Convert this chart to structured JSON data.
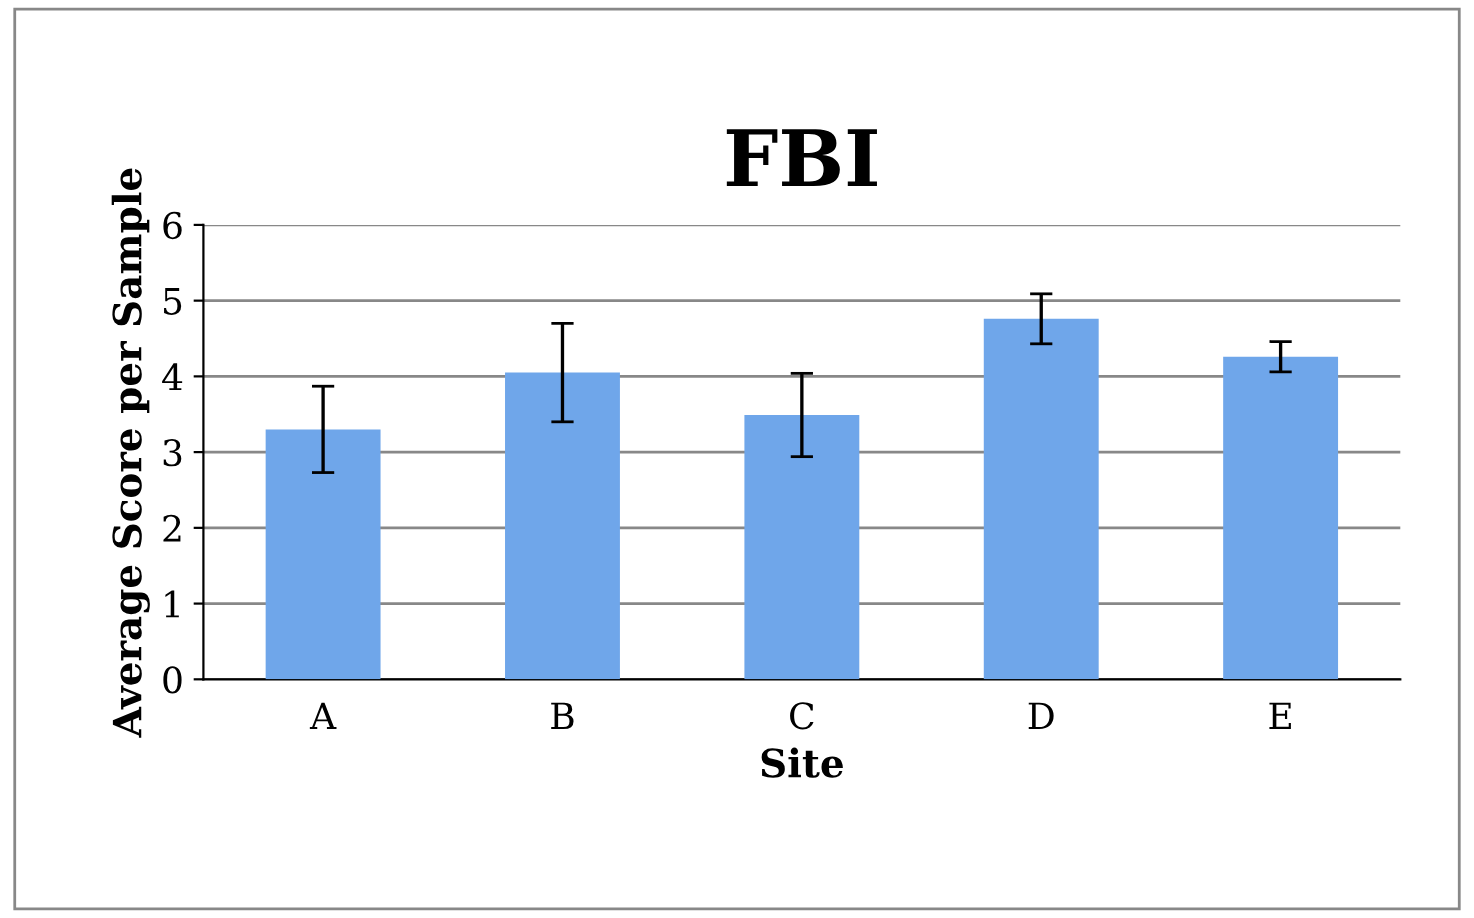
{
  "chart_data": {
    "type": "bar",
    "title": "FBI",
    "xlabel": "Site",
    "ylabel": "Average Score per Sample",
    "categories": [
      "A",
      "B",
      "C",
      "D",
      "E"
    ],
    "values": [
      3.3,
      4.05,
      3.49,
      4.76,
      4.26
    ],
    "errors": [
      0.57,
      0.65,
      0.55,
      0.33,
      0.2
    ],
    "color": "#6fa6ea",
    "ylim": [
      0,
      6
    ],
    "yticks": [
      0,
      1,
      2,
      3,
      4,
      5,
      6
    ],
    "grid": "y",
    "legend": false
  }
}
